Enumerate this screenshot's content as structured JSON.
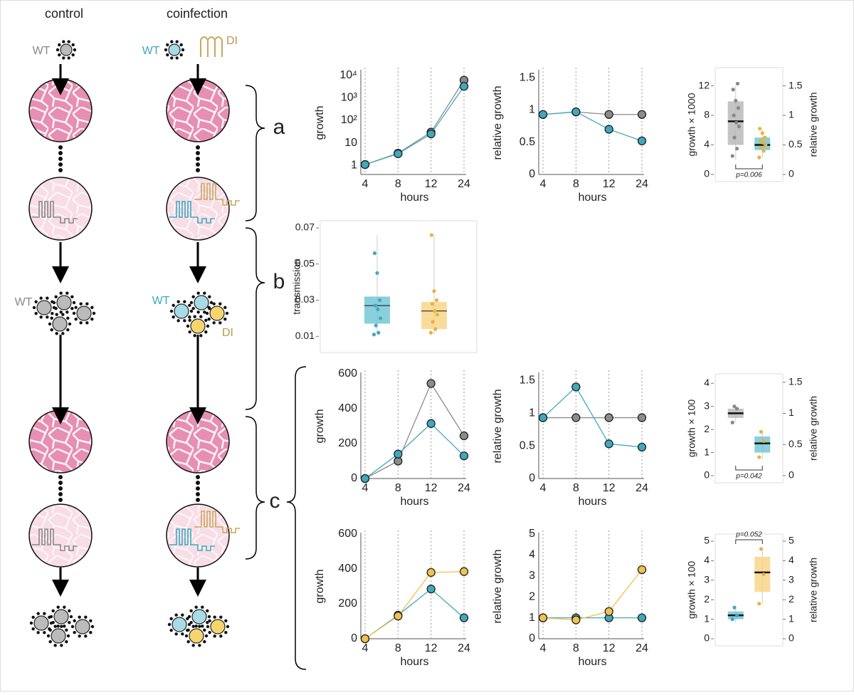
{
  "diagram": {
    "columns": [
      "control",
      "coinfection"
    ],
    "control_wt": "WT",
    "coinfection_wt": "WT",
    "coinfection_di": "DI",
    "control_progeny_wt": "WT",
    "coinfection_progeny_wt": "WT",
    "coinfection_progeny_di": "DI",
    "stages": [
      "a",
      "b",
      "c"
    ]
  },
  "chart_data": [
    {
      "type": "line",
      "ylabel": "growth",
      "xlabel": "hours",
      "log": true,
      "categories": [
        "4",
        "8",
        "12",
        "24"
      ],
      "ylim": [
        0.4,
        15000
      ],
      "yticks": [
        1,
        10,
        {
          "value": 100,
          "label": "10²"
        },
        {
          "value": 1000,
          "label": "10³"
        },
        {
          "value": 10000,
          "label": "10⁴"
        }
      ],
      "series": [
        {
          "color": "#8c8c8c",
          "values": [
            1.1,
            3.5,
            30,
            6000
          ]
        },
        {
          "color": "#3fa9bd",
          "values": [
            1.1,
            3.3,
            25,
            3200
          ]
        }
      ]
    },
    {
      "type": "line",
      "ylabel": "relative growth",
      "xlabel": "hours",
      "categories": [
        "4",
        "8",
        "12",
        "24"
      ],
      "ylim": [
        0,
        1.6
      ],
      "yticks": [
        0,
        0.5,
        1,
        1.5
      ],
      "series": [
        {
          "color": "#8c8c8c",
          "values": [
            0.93,
            0.97,
            0.93,
            0.93
          ]
        },
        {
          "color": "#3fa9bd",
          "values": [
            0.93,
            0.97,
            0.7,
            0.52
          ]
        }
      ]
    },
    {
      "type": "box",
      "ylabel": "growth × 1000",
      "y2label": "relative growth",
      "ylim": [
        0,
        13.5
      ],
      "yticks": [
        0,
        4,
        8,
        12
      ],
      "y2lim": [
        0,
        1.6875
      ],
      "y2ticks": [
        0,
        0.5,
        1,
        1.5
      ],
      "annotation": "p=0.006",
      "annotation_side": "bottom",
      "boxes": [
        {
          "color": "#b5b5b5",
          "whisker_low": 2,
          "q1": 4,
          "median": 7.2,
          "q3": 9.9,
          "whisker_high": 12,
          "points": [
            2.5,
            3.5,
            5,
            6.5,
            7,
            8,
            9,
            10,
            11.5,
            12.3
          ]
        },
        {
          "color": "#6cc4d3",
          "whisker_low": 2.2,
          "q1": 3.3,
          "median": 4,
          "q3": 5,
          "whisker_high": 6,
          "points": [
            2.3,
            3.2,
            3.6,
            4,
            4.3,
            4.6,
            5,
            5.6,
            6.2
          ]
        }
      ]
    },
    {
      "type": "box",
      "ylabel": "transmission",
      "ylim": [
        0.005,
        0.07
      ],
      "yticks": [
        0.01,
        0.03,
        0.05,
        0.07
      ],
      "boxes": [
        {
          "color": "#6cc4d3",
          "whisker_low": 0.011,
          "q1": 0.017,
          "median": 0.027,
          "q3": 0.032,
          "whisker_high": 0.066,
          "points": [
            0.011,
            0.012,
            0.016,
            0.02,
            0.025,
            0.027,
            0.03,
            0.045,
            0.056
          ]
        },
        {
          "color": "#f7d382",
          "whisker_low": 0.011,
          "q1": 0.014,
          "median": 0.024,
          "q3": 0.029,
          "whisker_high": 0.066,
          "points": [
            0.012,
            0.014,
            0.018,
            0.022,
            0.024,
            0.028,
            0.03,
            0.035,
            0.066
          ]
        }
      ]
    },
    {
      "type": "line",
      "ylabel": "growth",
      "xlabel": "hours",
      "categories": [
        "4",
        "8",
        "12",
        "24"
      ],
      "ylim": [
        0,
        600
      ],
      "yticks": [
        0,
        200,
        400,
        600
      ],
      "series": [
        {
          "color": "#8c8c8c",
          "values": [
            0,
            100,
            545,
            245
          ]
        },
        {
          "color": "#3fa9bd",
          "values": [
            0,
            140,
            315,
            130
          ]
        }
      ]
    },
    {
      "type": "line",
      "ylabel": "relative growth",
      "xlabel": "hours",
      "categories": [
        "4",
        "8",
        "12",
        "24"
      ],
      "ylim": [
        0,
        1.6
      ],
      "yticks": [
        0,
        0.5,
        1,
        1.5
      ],
      "series": [
        {
          "color": "#8c8c8c",
          "values": [
            0.93,
            0.93,
            0.93,
            0.93
          ]
        },
        {
          "color": "#3fa9bd",
          "values": [
            0.93,
            1.4,
            0.53,
            0.48
          ]
        }
      ]
    },
    {
      "type": "box",
      "ylabel": "growth × 100",
      "y2label": "relative growth",
      "ylim": [
        0,
        4.1
      ],
      "yticks": [
        0,
        1,
        2,
        3,
        4
      ],
      "y2lim": [
        0,
        1.52
      ],
      "y2ticks": [
        0,
        0.5,
        1,
        1.5
      ],
      "annotation": "p=0.042",
      "annotation_side": "bottom",
      "boxes": [
        {
          "color": "#b5b5b5",
          "whisker_low": 2.3,
          "q1": 2.5,
          "median": 2.7,
          "q3": 2.9,
          "whisker_high": 3.0,
          "points": [
            2.3,
            2.9,
            3.0
          ]
        },
        {
          "color": "#6cc4d3",
          "whisker_low": 0.7,
          "q1": 1.0,
          "median": 1.4,
          "q3": 1.7,
          "whisker_high": 1.9,
          "points": [
            0.8,
            1.5,
            1.9
          ]
        }
      ]
    },
    {
      "type": "line",
      "ylabel": "growth",
      "xlabel": "hours",
      "categories": [
        "4",
        "8",
        "12",
        "24"
      ],
      "ylim": [
        0,
        600
      ],
      "yticks": [
        0,
        200,
        400,
        600
      ],
      "series": [
        {
          "color": "#3fa9bd",
          "values": [
            0,
            135,
            285,
            120
          ]
        },
        {
          "color": "#f2c24f",
          "values": [
            0,
            130,
            380,
            385
          ]
        }
      ]
    },
    {
      "type": "line",
      "ylabel": "relative growth",
      "xlabel": "hours",
      "categories": [
        "4",
        "8",
        "12",
        "24"
      ],
      "ylim": [
        0,
        5
      ],
      "yticks": [
        0,
        1,
        2,
        3,
        4,
        5
      ],
      "series": [
        {
          "color": "#3fa9bd",
          "values": [
            1,
            1,
            1,
            1
          ]
        },
        {
          "color": "#f2c24f",
          "values": [
            1,
            0.9,
            1.3,
            3.3
          ]
        }
      ]
    },
    {
      "type": "box",
      "ylabel": "growth × 100",
      "y2label": "relative growth",
      "ylim": [
        0,
        5
      ],
      "yticks": [
        0,
        1,
        2,
        3,
        4,
        5
      ],
      "y2lim": [
        0,
        5
      ],
      "y2ticks": [
        0,
        1,
        2,
        3,
        4,
        5
      ],
      "annotation": "p=0.052",
      "annotation_side": "top",
      "boxes": [
        {
          "color": "#6cc4d3",
          "whisker_low": 0.8,
          "q1": 1.0,
          "median": 1.2,
          "q3": 1.4,
          "whisker_high": 1.6,
          "points": [
            1.0,
            1.2,
            1.6
          ]
        },
        {
          "color": "#f7d382",
          "whisker_low": 1.8,
          "q1": 2.4,
          "median": 3.4,
          "q3": 4.2,
          "whisker_high": 4.6,
          "points": [
            1.8,
            3.3,
            4.6
          ]
        }
      ]
    }
  ]
}
